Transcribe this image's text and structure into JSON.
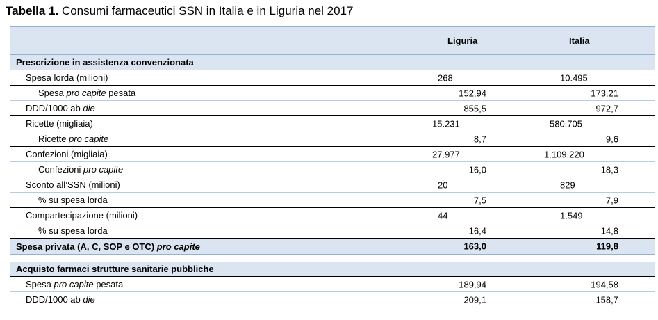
{
  "title": {
    "prefix": "Tabella 1.",
    "text": "Consumi farmaceutici SSN in Italia e in Liguria nel 2017"
  },
  "columns": {
    "liguria": "Liguria",
    "italia": "Italia"
  },
  "section1": {
    "label": "Prescrizione in assistenza convenzionata"
  },
  "rows": [
    {
      "label": "Spesa lorda (milioni)",
      "liguria": "268",
      "italia": "10.495"
    },
    {
      "label_pre": "Spesa ",
      "label_it": "pro capite",
      "label_post": " pesata",
      "liguria": "152,94",
      "italia": "173,21"
    },
    {
      "label_pre": "DDD/1000 ab ",
      "label_it": "die",
      "label_post": "",
      "liguria": "855,5",
      "italia": "972,7"
    },
    {
      "label": "Ricette (migliaia)",
      "liguria": "15.231",
      "italia": "580.705"
    },
    {
      "label_pre": "Ricette ",
      "label_it": "pro capite",
      "label_post": "",
      "liguria": "8,7",
      "italia": "9,6"
    },
    {
      "label": "Confezioni (migliaia)",
      "liguria": "27.977",
      "italia": "1.109.220"
    },
    {
      "label_pre": "Confezioni ",
      "label_it": "pro capite",
      "label_post": "",
      "liguria": "16,0",
      "italia": "18,3"
    },
    {
      "label": "Sconto all’SSN (milioni)",
      "liguria": "20",
      "italia": "829"
    },
    {
      "label": "% su spesa lorda",
      "liguria": "7,5",
      "italia": "7,9"
    },
    {
      "label": "Compartecipazione (milioni)",
      "liguria": "44",
      "italia": "1.549"
    },
    {
      "label": "% su spesa lorda",
      "liguria": "16,4",
      "italia": "14,8"
    }
  ],
  "private": {
    "label_pre": "Spesa privata (A, C, SOP e OTC) ",
    "label_it": "pro capite",
    "liguria": "163,0",
    "italia": "119,8"
  },
  "section2": {
    "label": "Acquisto farmaci strutture sanitarie pubbliche"
  },
  "rows2": [
    {
      "label_pre": "Spesa ",
      "label_it": "pro capite",
      "label_post": " pesata",
      "liguria": "189,94",
      "italia": "194,58"
    },
    {
      "label_pre": "DDD/1000 ab ",
      "label_it": "die",
      "label_post": "",
      "liguria": "209,1",
      "italia": "158,7"
    }
  ]
}
